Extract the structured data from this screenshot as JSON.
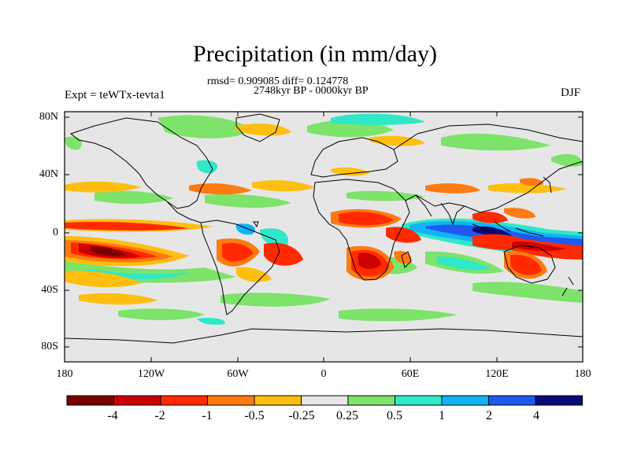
{
  "title": "Precipitation (in mm/day)",
  "stats": "rmsd= 0.909085 diff= 0.124778",
  "period": "2748kyr BP - 0000kyr BP",
  "experiment": "Expt = teWTx-tevta1",
  "season": "DJF",
  "lat_labels": [
    "80N",
    "40N",
    "0",
    "40S",
    "80S"
  ],
  "lon_labels": [
    "180",
    "120W",
    "60W",
    "0",
    "60E",
    "120E",
    "180"
  ],
  "colorbar": {
    "labels": [
      "-4",
      "-2",
      "-1",
      "-0.5",
      "-0.25",
      "0.25",
      "0.5",
      "1",
      "2",
      "4"
    ],
    "colors": [
      "#7a0000",
      "#cc0000",
      "#ff2a00",
      "#ff7a10",
      "#ffbe10",
      "#e6e6e6",
      "#7de36a",
      "#2ee8c8",
      "#10b4f5",
      "#1e5af0",
      "#0a0a7a"
    ]
  },
  "colors": {
    "background": "#e6e6e6",
    "coast": "#000000"
  }
}
